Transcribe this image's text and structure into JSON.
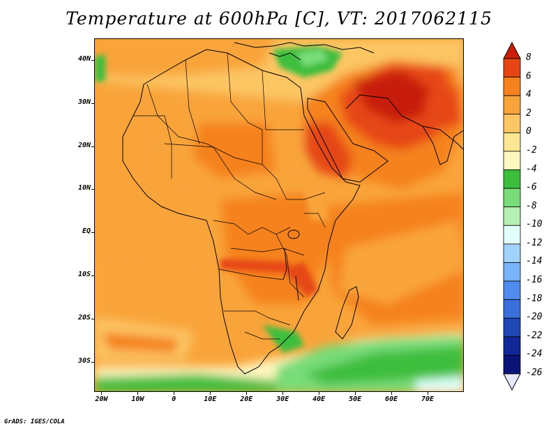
{
  "title": "Temperature at 600hPa [C], VT: 2017062115",
  "credit": "GrADS: IGES/COLA",
  "map": {
    "lon_range": [
      -22,
      80
    ],
    "lat_range": [
      -37,
      45
    ],
    "lon_ticks": [
      {
        "value": -20,
        "label": "20W"
      },
      {
        "value": -10,
        "label": "10W"
      },
      {
        "value": 0,
        "label": "0"
      },
      {
        "value": 10,
        "label": "10E"
      },
      {
        "value": 20,
        "label": "20E"
      },
      {
        "value": 30,
        "label": "30E"
      },
      {
        "value": 40,
        "label": "40E"
      },
      {
        "value": 50,
        "label": "50E"
      },
      {
        "value": 60,
        "label": "60E"
      },
      {
        "value": 70,
        "label": "70E"
      }
    ],
    "lat_ticks": [
      {
        "value": 40,
        "label": "40N"
      },
      {
        "value": 30,
        "label": "30N"
      },
      {
        "value": 20,
        "label": "20N"
      },
      {
        "value": 10,
        "label": "10N"
      },
      {
        "value": 0,
        "label": "EQ"
      },
      {
        "value": -10,
        "label": "10S"
      },
      {
        "value": -20,
        "label": "20S"
      },
      {
        "value": -30,
        "label": "30S"
      }
    ]
  },
  "colorbar": {
    "labels": [
      "8",
      "6",
      "4",
      "2",
      "0",
      "-2",
      "-4",
      "-6",
      "-8",
      "-10",
      "-12",
      "-14",
      "-16",
      "-18",
      "-20",
      "-22",
      "-24",
      "-26"
    ],
    "colors": [
      "#c81e0a",
      "#e64614",
      "#f5821e",
      "#f9a43a",
      "#fcc664",
      "#fde694",
      "#fff7c0",
      "#3cbe3c",
      "#78dc78",
      "#b4f0b4",
      "#e1ffff",
      "#a0d2fa",
      "#78b4fa",
      "#508cf0",
      "#3c6edc",
      "#1e46b4",
      "#0f2896",
      "#0a1478",
      "#e6e6ff"
    ]
  }
}
